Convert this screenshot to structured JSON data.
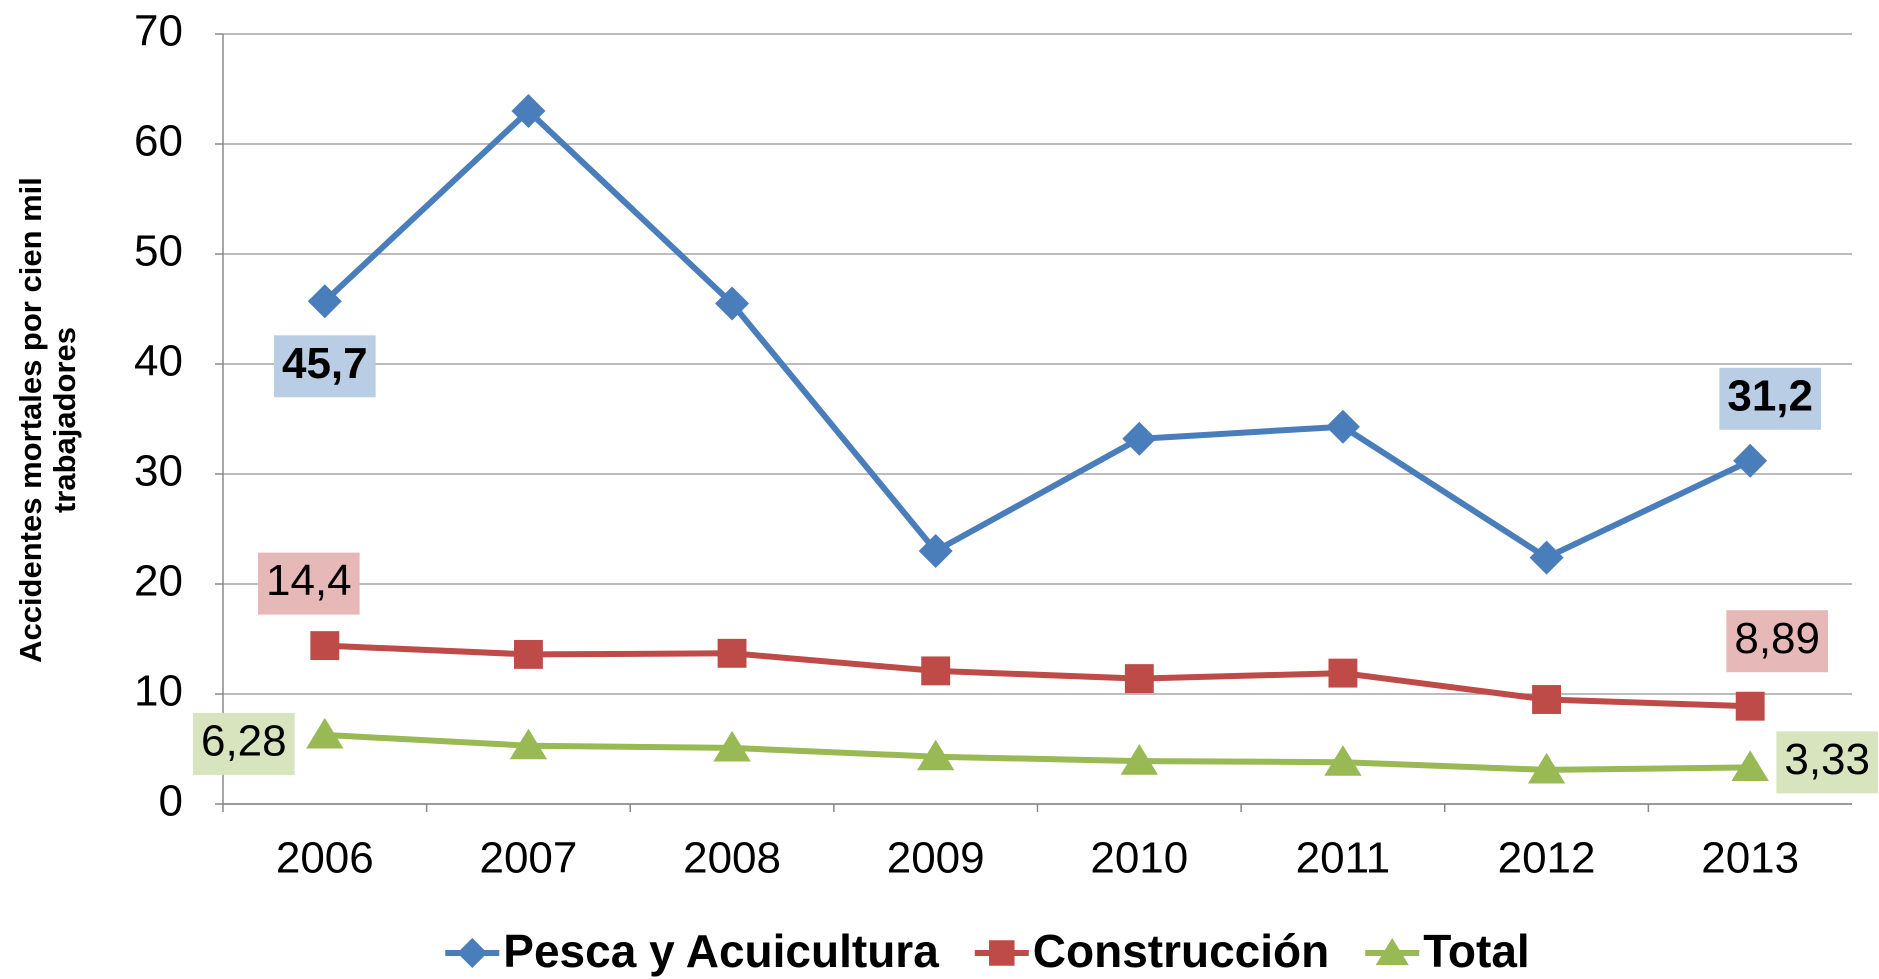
{
  "chart_data": {
    "type": "line",
    "ylabel": "Accidentes mortales por cien mil trabajadores",
    "categories": [
      "2006",
      "2007",
      "2008",
      "2009",
      "2010",
      "2011",
      "2012",
      "2013"
    ],
    "series": [
      {
        "name": "Pesca y Acuicultura",
        "color": "#4a7ebb",
        "marker": "diamond",
        "values": [
          45.7,
          63,
          45.5,
          23,
          33.2,
          34.3,
          22.4,
          31.2
        ],
        "value_labels": [
          "45,7",
          null,
          null,
          null,
          null,
          null,
          null,
          "31,2"
        ]
      },
      {
        "name": "Construcción",
        "color": "#be4b48",
        "marker": "square",
        "values": [
          14.4,
          13.6,
          13.7,
          12.1,
          11.4,
          11.9,
          9.5,
          8.89
        ],
        "value_labels": [
          "14,4",
          null,
          null,
          null,
          null,
          null,
          null,
          "8,89"
        ]
      },
      {
        "name": "Total",
        "color": "#98b954",
        "marker": "triangle",
        "values": [
          6.28,
          5.3,
          5.1,
          4.3,
          3.9,
          3.8,
          3.1,
          3.33
        ],
        "value_labels": [
          "6,28",
          null,
          null,
          null,
          null,
          null,
          null,
          "3,33"
        ]
      }
    ],
    "ylim": [
      0,
      70
    ],
    "yticks": [
      0,
      10,
      20,
      30,
      40,
      50,
      60,
      70
    ],
    "grid": true,
    "legend": "bottom"
  }
}
